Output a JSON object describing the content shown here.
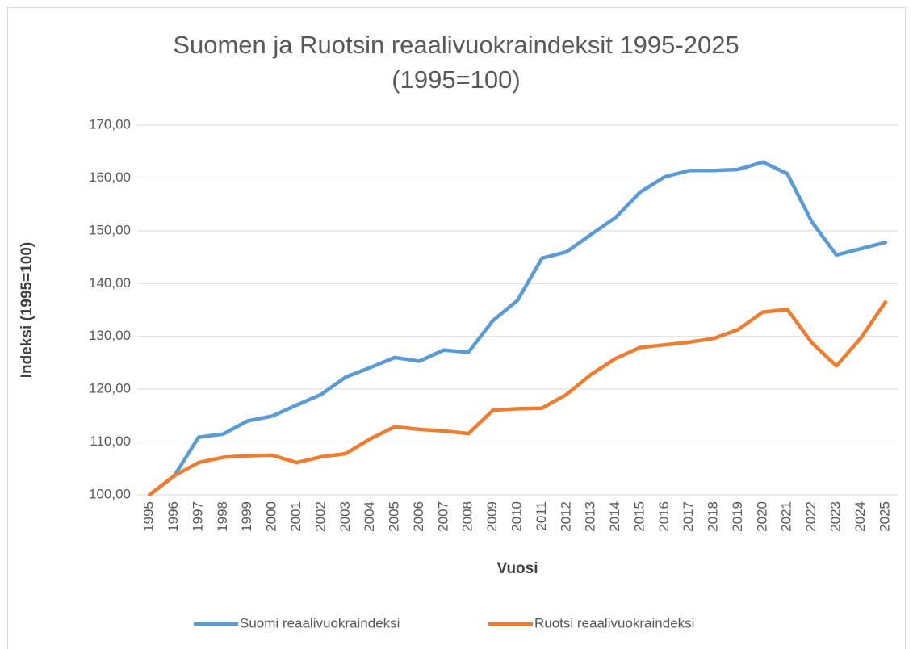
{
  "chart_data": {
    "type": "line",
    "title": "Suomen ja Ruotsin reaalivuokraindeksit 1995-2025",
    "subtitle": "(1995=100)",
    "x_label": "Vuosi",
    "y_label": "Indeksi (1995=100)",
    "categories": [
      "1995",
      "1996",
      "1997",
      "1998",
      "1999",
      "2000",
      "2001",
      "2002",
      "2003",
      "2004",
      "2005",
      "2006",
      "2007",
      "2008",
      "2009",
      "2010",
      "2011",
      "2012",
      "2013",
      "2014",
      "2015",
      "2016",
      "2017",
      "2018",
      "2019",
      "2020",
      "2021",
      "2022",
      "2023",
      "2024",
      "2025"
    ],
    "series": [
      {
        "name": "Suomi reaalivuokraindeksi",
        "color": "#5b9bd5",
        "values": [
          100,
          103.5,
          110.9,
          111.5,
          114,
          114.9,
          117,
          119,
          122.3,
          124.1,
          126,
          125.3,
          127.4,
          127,
          133,
          136.8,
          144.8,
          146,
          149.3,
          152.5,
          157.3,
          160.2,
          161.4,
          161.4,
          161.6,
          163,
          160.8,
          151.7,
          145.4,
          146.6,
          147.8
        ]
      },
      {
        "name": "Ruotsi reaalivuokraindeksi",
        "color": "#ed7d31",
        "values": [
          100,
          103.6,
          106.1,
          107.1,
          107.4,
          107.5,
          106.1,
          107.2,
          107.8,
          110.6,
          112.9,
          112.4,
          112.1,
          111.6,
          116,
          116.3,
          116.4,
          119,
          122.8,
          125.8,
          127.9,
          128.4,
          128.9,
          129.6,
          131.3,
          134.6,
          135.1,
          128.8,
          124.4,
          129.7,
          136.5
        ]
      }
    ],
    "ylim": [
      100,
      170
    ],
    "yticks": [
      {
        "value": 100,
        "label": "100,00"
      },
      {
        "value": 110,
        "label": "110,00"
      },
      {
        "value": 120,
        "label": "120,00"
      },
      {
        "value": 130,
        "label": "130,00"
      },
      {
        "value": 140,
        "label": "140,00"
      },
      {
        "value": 150,
        "label": "150,00"
      },
      {
        "value": 160,
        "label": "160,00"
      },
      {
        "value": 170,
        "label": "170,00"
      }
    ],
    "grid": true,
    "legend": "bottom"
  }
}
